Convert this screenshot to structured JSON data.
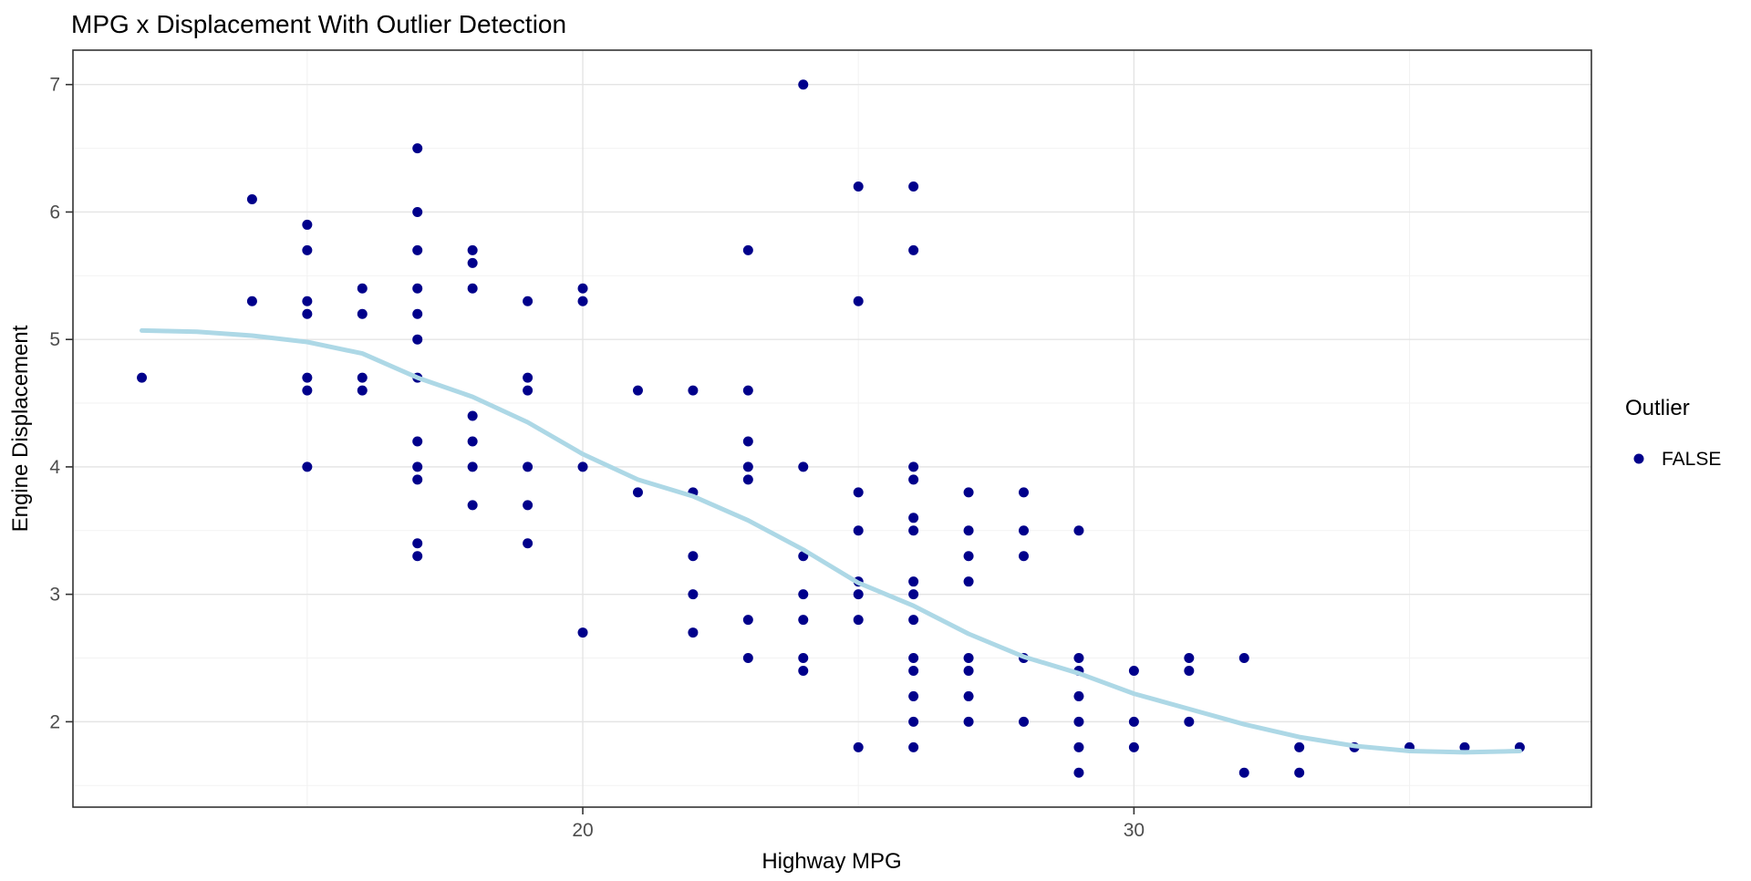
{
  "chart_data": {
    "type": "scatter",
    "title": "MPG x Displacement With Outlier Detection",
    "xlabel": "Highway MPG",
    "ylabel": "Engine Displacement",
    "xlim": [
      10.75,
      38.3
    ],
    "ylim": [
      1.33,
      7.27
    ],
    "x_major_ticks": [
      20,
      30
    ],
    "x_minor_ticks": [
      15,
      25,
      35
    ],
    "y_major_ticks": [
      2,
      3,
      4,
      5,
      6,
      7
    ],
    "y_minor_ticks": [
      1.5,
      2.5,
      3.5,
      4.5,
      5.5,
      6.5
    ],
    "grid": true,
    "legend": {
      "title": "Outlier",
      "position": "right",
      "entries": [
        {
          "label": "FALSE",
          "color": "#00008B"
        }
      ]
    },
    "series": [
      {
        "name": "FALSE",
        "type": "scatter",
        "color": "#00008B",
        "points": [
          [
            12,
            4.7
          ],
          [
            14,
            6.1
          ],
          [
            14,
            5.3
          ],
          [
            15,
            5.9
          ],
          [
            15,
            5.7
          ],
          [
            15,
            5.3
          ],
          [
            15,
            5.2
          ],
          [
            15,
            4.7
          ],
          [
            15,
            4.6
          ],
          [
            15,
            4.0
          ],
          [
            16,
            5.4
          ],
          [
            16,
            5.2
          ],
          [
            16,
            4.7
          ],
          [
            16,
            4.6
          ],
          [
            17,
            6.5
          ],
          [
            17,
            6.0
          ],
          [
            17,
            5.7
          ],
          [
            17,
            5.4
          ],
          [
            17,
            5.2
          ],
          [
            17,
            5.0
          ],
          [
            17,
            4.7
          ],
          [
            17,
            4.2
          ],
          [
            17,
            4.0
          ],
          [
            17,
            3.9
          ],
          [
            17,
            3.4
          ],
          [
            17,
            3.3
          ],
          [
            18,
            5.7
          ],
          [
            18,
            5.6
          ],
          [
            18,
            5.4
          ],
          [
            18,
            4.4
          ],
          [
            18,
            4.2
          ],
          [
            18,
            4.0
          ],
          [
            18,
            3.7
          ],
          [
            19,
            5.3
          ],
          [
            19,
            4.7
          ],
          [
            19,
            4.6
          ],
          [
            19,
            4.0
          ],
          [
            19,
            3.7
          ],
          [
            19,
            3.4
          ],
          [
            20,
            5.4
          ],
          [
            20,
            5.3
          ],
          [
            20,
            4.0
          ],
          [
            20,
            2.7
          ],
          [
            21,
            4.6
          ],
          [
            21,
            3.8
          ],
          [
            22,
            4.6
          ],
          [
            22,
            3.8
          ],
          [
            22,
            3.3
          ],
          [
            22,
            3.0
          ],
          [
            22,
            2.7
          ],
          [
            23,
            5.7
          ],
          [
            23,
            4.6
          ],
          [
            23,
            4.2
          ],
          [
            23,
            4.0
          ],
          [
            23,
            3.9
          ],
          [
            23,
            2.8
          ],
          [
            23,
            2.5
          ],
          [
            24,
            7.0
          ],
          [
            24,
            4.0
          ],
          [
            24,
            3.3
          ],
          [
            24,
            3.0
          ],
          [
            24,
            2.8
          ],
          [
            24,
            2.5
          ],
          [
            24,
            2.4
          ],
          [
            25,
            6.2
          ],
          [
            25,
            5.3
          ],
          [
            25,
            3.8
          ],
          [
            25,
            3.5
          ],
          [
            25,
            3.1
          ],
          [
            25,
            3.0
          ],
          [
            25,
            2.8
          ],
          [
            25,
            1.8
          ],
          [
            26,
            6.2
          ],
          [
            26,
            5.7
          ],
          [
            26,
            4.0
          ],
          [
            26,
            3.9
          ],
          [
            26,
            3.6
          ],
          [
            26,
            3.5
          ],
          [
            26,
            3.1
          ],
          [
            26,
            3.0
          ],
          [
            26,
            2.8
          ],
          [
            26,
            2.5
          ],
          [
            26,
            2.4
          ],
          [
            26,
            2.2
          ],
          [
            26,
            2.0
          ],
          [
            26,
            1.8
          ],
          [
            27,
            3.8
          ],
          [
            27,
            3.5
          ],
          [
            27,
            3.3
          ],
          [
            27,
            3.1
          ],
          [
            27,
            2.5
          ],
          [
            27,
            2.4
          ],
          [
            27,
            2.2
          ],
          [
            27,
            2.0
          ],
          [
            28,
            3.8
          ],
          [
            28,
            3.5
          ],
          [
            28,
            3.3
          ],
          [
            28,
            2.5
          ],
          [
            28,
            2.0
          ],
          [
            29,
            3.5
          ],
          [
            29,
            2.5
          ],
          [
            29,
            2.4
          ],
          [
            29,
            2.2
          ],
          [
            29,
            2.0
          ],
          [
            29,
            1.8
          ],
          [
            29,
            1.6
          ],
          [
            30,
            2.4
          ],
          [
            30,
            2.0
          ],
          [
            30,
            1.8
          ],
          [
            31,
            2.5
          ],
          [
            31,
            2.4
          ],
          [
            31,
            2.0
          ],
          [
            32,
            2.5
          ],
          [
            32,
            1.6
          ],
          [
            33,
            1.8
          ],
          [
            33,
            1.6
          ],
          [
            34,
            1.8
          ],
          [
            35,
            1.8
          ],
          [
            36,
            1.8
          ],
          [
            37,
            1.8
          ]
        ]
      }
    ],
    "smooth": {
      "name": "loess-trend",
      "color": "#ADD8E6",
      "points": [
        [
          12,
          5.07
        ],
        [
          13,
          5.06
        ],
        [
          14,
          5.03
        ],
        [
          15,
          4.98
        ],
        [
          16,
          4.89
        ],
        [
          17,
          4.7
        ],
        [
          18,
          4.55
        ],
        [
          19,
          4.35
        ],
        [
          20,
          4.1
        ],
        [
          21,
          3.9
        ],
        [
          22,
          3.77
        ],
        [
          23,
          3.58
        ],
        [
          24,
          3.35
        ],
        [
          25,
          3.09
        ],
        [
          26,
          2.91
        ],
        [
          27,
          2.69
        ],
        [
          28,
          2.51
        ],
        [
          29,
          2.38
        ],
        [
          30,
          2.22
        ],
        [
          31,
          2.1
        ],
        [
          32,
          1.98
        ],
        [
          33,
          1.88
        ],
        [
          34,
          1.81
        ],
        [
          35,
          1.77
        ],
        [
          36,
          1.76
        ],
        [
          37,
          1.77
        ]
      ]
    },
    "colors": {
      "point": "#00008B",
      "smooth": "#ADD8E6",
      "grid_major": "#E4E4E4",
      "grid_minor": "#F2F2F2",
      "panel_border": "#333333",
      "tick_mark": "#333333",
      "tick_text": "#4d4d4d",
      "background": "#ffffff"
    }
  }
}
